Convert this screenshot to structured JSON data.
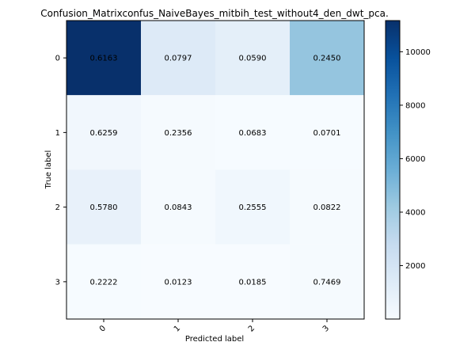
{
  "chart_data": {
    "type": "heatmap",
    "title": "Confusion_Matrixconfus_NaiveBayes_mitbih_test_without4_den_dwt_pca.",
    "xlabel": "Predicted label",
    "ylabel": "True label",
    "x_categories": [
      "0",
      "1",
      "2",
      "3"
    ],
    "y_categories": [
      "0",
      "1",
      "2",
      "3"
    ],
    "cell_labels": [
      [
        "0.6163",
        "0.0797",
        "0.0590",
        "0.2450"
      ],
      [
        "0.6259",
        "0.2356",
        "0.0683",
        "0.0701"
      ],
      [
        "0.5780",
        "0.0843",
        "0.2555",
        "0.0822"
      ],
      [
        "0.2222",
        "0.0123",
        "0.0185",
        "0.7469"
      ]
    ],
    "counts": [
      [
        11165,
        1444,
        1069,
        4438
      ],
      [
        348,
        131,
        38,
        39
      ],
      [
        837,
        122,
        370,
        119
      ],
      [
        36,
        2,
        3,
        121
      ]
    ],
    "colorbar": {
      "min": 2,
      "max": 11165,
      "ticks": [
        2000,
        4000,
        6000,
        8000,
        10000
      ],
      "colormap": "Blues"
    },
    "grid": false
  }
}
